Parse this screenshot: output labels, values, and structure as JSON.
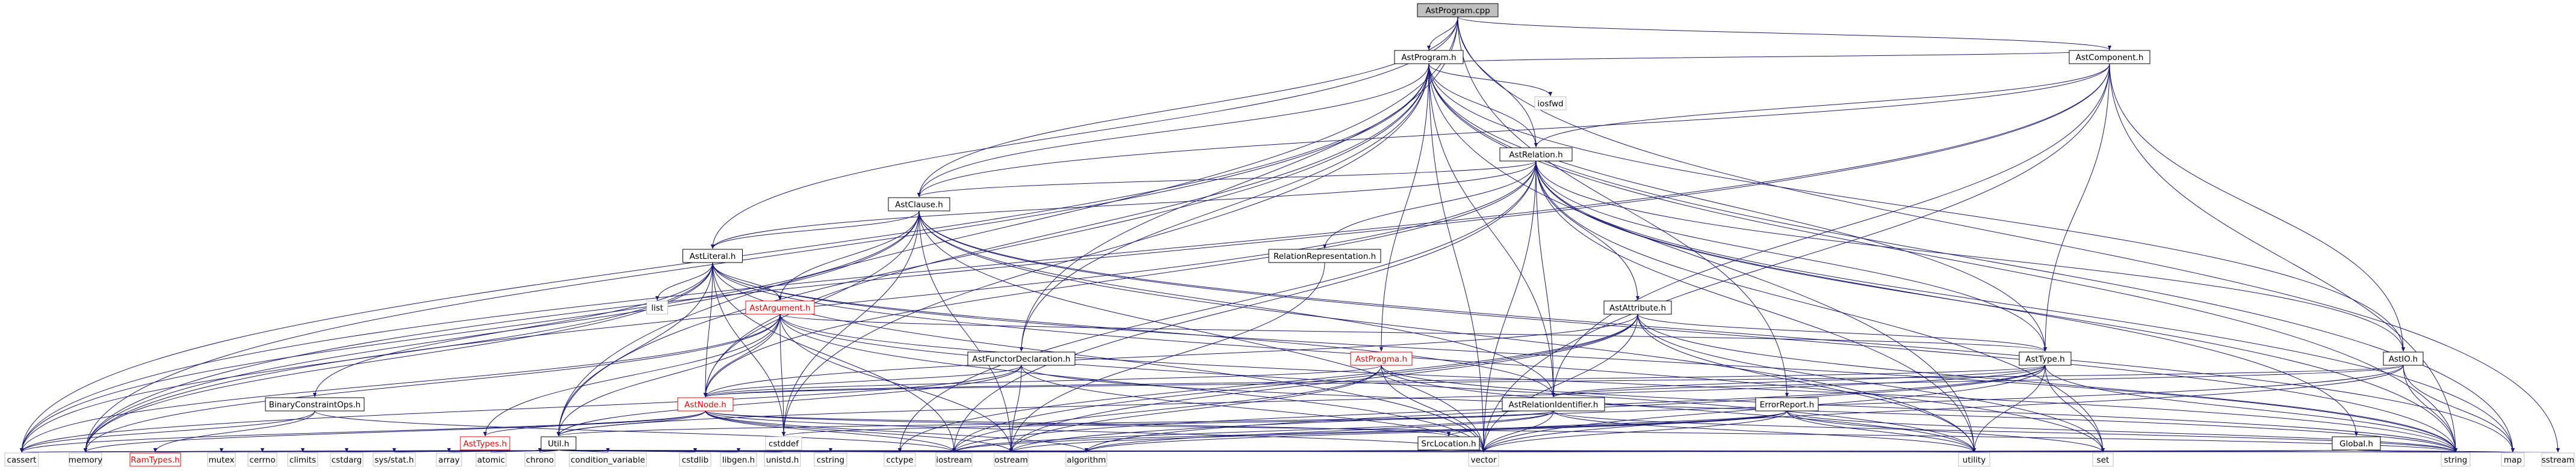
{
  "diagram": {
    "nodes": [
      {
        "id": "AstProgram_cpp",
        "label": "AstProgram.cpp",
        "style": "root"
      },
      {
        "id": "AstProgram_h",
        "label": "AstProgram.h",
        "style": "normal"
      },
      {
        "id": "iosfwd",
        "label": "iosfwd",
        "style": "sys"
      },
      {
        "id": "AstComponent_h",
        "label": "AstComponent.h",
        "style": "normal"
      },
      {
        "id": "AstRelation_h",
        "label": "AstRelation.h",
        "style": "normal"
      },
      {
        "id": "AstClause_h",
        "label": "AstClause.h",
        "style": "normal"
      },
      {
        "id": "AstLiteral_h",
        "label": "AstLiteral.h",
        "style": "normal"
      },
      {
        "id": "RelationRepresentation_h",
        "label": "RelationRepresentation.h",
        "style": "normal"
      },
      {
        "id": "list",
        "label": "list",
        "style": "sys"
      },
      {
        "id": "AstArgument_h",
        "label": "AstArgument.h",
        "style": "red"
      },
      {
        "id": "AstAttribute_h",
        "label": "AstAttribute.h",
        "style": "normal"
      },
      {
        "id": "AstFunctorDeclaration_h",
        "label": "AstFunctorDeclaration.h",
        "style": "normal"
      },
      {
        "id": "AstPragma_h",
        "label": "AstPragma.h",
        "style": "red"
      },
      {
        "id": "AstType_h",
        "label": "AstType.h",
        "style": "normal"
      },
      {
        "id": "AstIO_h",
        "label": "AstIO.h",
        "style": "normal"
      },
      {
        "id": "AstNode_h",
        "label": "AstNode.h",
        "style": "red"
      },
      {
        "id": "AstRelationIdentifier_h",
        "label": "AstRelationIdentifier.h",
        "style": "normal"
      },
      {
        "id": "ErrorReport_h",
        "label": "ErrorReport.h",
        "style": "normal"
      },
      {
        "id": "BinaryConstraintOps_h",
        "label": "BinaryConstraintOps.h",
        "style": "normal"
      },
      {
        "id": "AstTypes_h",
        "label": "AstTypes.h",
        "style": "red"
      },
      {
        "id": "Util_h",
        "label": "Util.h",
        "style": "normal"
      },
      {
        "id": "SrcLocation_h",
        "label": "SrcLocation.h",
        "style": "normal"
      },
      {
        "id": "Global_h",
        "label": "Global.h",
        "style": "normal"
      },
      {
        "id": "cstddef",
        "label": "cstddef",
        "style": "sys"
      },
      {
        "id": "cassert",
        "label": "cassert",
        "style": "sys"
      },
      {
        "id": "memory",
        "label": "memory",
        "style": "sys"
      },
      {
        "id": "RamTypes_h",
        "label": "RamTypes.h",
        "style": "red"
      },
      {
        "id": "mutex",
        "label": "mutex",
        "style": "sys"
      },
      {
        "id": "cerrno",
        "label": "cerrno",
        "style": "sys"
      },
      {
        "id": "climits",
        "label": "climits",
        "style": "sys"
      },
      {
        "id": "cstdarg",
        "label": "cstdarg",
        "style": "sys"
      },
      {
        "id": "sys_stat_h",
        "label": "sys/stat.h",
        "style": "sys"
      },
      {
        "id": "array",
        "label": "array",
        "style": "sys"
      },
      {
        "id": "atomic",
        "label": "atomic",
        "style": "sys"
      },
      {
        "id": "chrono",
        "label": "chrono",
        "style": "sys"
      },
      {
        "id": "condition_variable",
        "label": "condition_variable",
        "style": "sys"
      },
      {
        "id": "cstdlib",
        "label": "cstdlib",
        "style": "sys"
      },
      {
        "id": "libgen_h",
        "label": "libgen.h",
        "style": "sys"
      },
      {
        "id": "unistd_h",
        "label": "unistd.h",
        "style": "sys"
      },
      {
        "id": "cstring",
        "label": "cstring",
        "style": "sys"
      },
      {
        "id": "cctype",
        "label": "cctype",
        "style": "sys"
      },
      {
        "id": "iostream",
        "label": "iostream",
        "style": "sys"
      },
      {
        "id": "ostream",
        "label": "ostream",
        "style": "sys"
      },
      {
        "id": "algorithm",
        "label": "algorithm",
        "style": "sys"
      },
      {
        "id": "vector",
        "label": "vector",
        "style": "sys"
      },
      {
        "id": "utility",
        "label": "utility",
        "style": "sys"
      },
      {
        "id": "set",
        "label": "set",
        "style": "sys"
      },
      {
        "id": "string",
        "label": "string",
        "style": "sys"
      },
      {
        "id": "map",
        "label": "map",
        "style": "sys"
      },
      {
        "id": "sstream",
        "label": "sstream",
        "style": "sys"
      }
    ],
    "edges": [
      [
        "AstProgram_cpp",
        "AstProgram_h"
      ],
      [
        "AstProgram_cpp",
        "AstComponent_h"
      ],
      [
        "AstProgram_cpp",
        "AstRelation_h"
      ],
      [
        "AstProgram_cpp",
        "AstClause_h"
      ],
      [
        "AstProgram_cpp",
        "AstLiteral_h"
      ],
      [
        "AstProgram_cpp",
        "AstFunctorDeclaration_h"
      ],
      [
        "AstProgram_cpp",
        "ErrorReport_h"
      ],
      [
        "AstProgram_cpp",
        "Util_h"
      ],
      [
        "AstProgram_cpp",
        "sstream"
      ],
      [
        "AstProgram_h",
        "iosfwd"
      ],
      [
        "AstProgram_h",
        "AstComponent_h"
      ],
      [
        "AstProgram_h",
        "AstRelation_h"
      ],
      [
        "AstProgram_h",
        "AstClause_h"
      ],
      [
        "AstProgram_h",
        "AstFunctorDeclaration_h"
      ],
      [
        "AstProgram_h",
        "AstPragma_h"
      ],
      [
        "AstProgram_h",
        "AstType_h"
      ],
      [
        "AstProgram_h",
        "AstIO_h"
      ],
      [
        "AstProgram_h",
        "AstNode_h"
      ],
      [
        "AstProgram_h",
        "AstRelationIdentifier_h"
      ],
      [
        "AstProgram_h",
        "Util_h"
      ],
      [
        "AstProgram_h",
        "cassert"
      ],
      [
        "AstProgram_h",
        "memory"
      ],
      [
        "AstProgram_h",
        "cstddef"
      ],
      [
        "AstProgram_h",
        "vector"
      ],
      [
        "AstProgram_h",
        "string"
      ],
      [
        "AstProgram_h",
        "map"
      ],
      [
        "AstProgram_h",
        "utility"
      ],
      [
        "AstComponent_h",
        "AstRelation_h"
      ],
      [
        "AstComponent_h",
        "AstClause_h"
      ],
      [
        "AstComponent_h",
        "AstIO_h"
      ],
      [
        "AstComponent_h",
        "AstType_h"
      ],
      [
        "AstComponent_h",
        "AstRelationIdentifier_h"
      ],
      [
        "AstComponent_h",
        "memory"
      ],
      [
        "AstComponent_h",
        "string"
      ],
      [
        "AstComponent_h",
        "vector"
      ],
      [
        "AstComponent_h",
        "cassert"
      ],
      [
        "AstRelation_h",
        "AstClause_h"
      ],
      [
        "AstRelation_h",
        "AstAttribute_h"
      ],
      [
        "AstRelation_h",
        "AstIO_h"
      ],
      [
        "AstRelation_h",
        "AstNode_h"
      ],
      [
        "AstRelation_h",
        "AstType_h"
      ],
      [
        "AstRelation_h",
        "AstRelationIdentifier_h"
      ],
      [
        "AstRelation_h",
        "RelationRepresentation_h"
      ],
      [
        "AstRelation_h",
        "Global_h"
      ],
      [
        "AstRelation_h",
        "memory"
      ],
      [
        "AstRelation_h",
        "set"
      ],
      [
        "AstRelation_h",
        "string"
      ],
      [
        "AstRelation_h",
        "vector"
      ],
      [
        "AstRelation_h",
        "utility"
      ],
      [
        "AstRelation_h",
        "cctype"
      ],
      [
        "AstRelation_h",
        "iostream"
      ],
      [
        "AstRelation_h",
        "map"
      ],
      [
        "AstRelation_h",
        "AstLiteral_h"
      ],
      [
        "AstClause_h",
        "AstLiteral_h"
      ],
      [
        "AstClause_h",
        "AstArgument_h"
      ],
      [
        "AstClause_h",
        "AstNode_h"
      ],
      [
        "AstClause_h",
        "AstRelationIdentifier_h"
      ],
      [
        "AstClause_h",
        "cstddef"
      ],
      [
        "AstClause_h",
        "memory"
      ],
      [
        "AstClause_h",
        "string"
      ],
      [
        "AstClause_h",
        "vector"
      ],
      [
        "AstClause_h",
        "map"
      ],
      [
        "AstClause_h",
        "cassert"
      ],
      [
        "AstClause_h",
        "ostream"
      ],
      [
        "AstClause_h",
        "utility"
      ],
      [
        "AstLiteral_h",
        "list"
      ],
      [
        "AstLiteral_h",
        "AstArgument_h"
      ],
      [
        "AstLiteral_h",
        "AstNode_h"
      ],
      [
        "AstLiteral_h",
        "AstRelationIdentifier_h"
      ],
      [
        "AstLiteral_h",
        "BinaryConstraintOps_h"
      ],
      [
        "AstLiteral_h",
        "Util_h"
      ],
      [
        "AstLiteral_h",
        "cstddef"
      ],
      [
        "AstLiteral_h",
        "memory"
      ],
      [
        "AstLiteral_h",
        "string"
      ],
      [
        "AstLiteral_h",
        "vector"
      ],
      [
        "AstLiteral_h",
        "iostream"
      ],
      [
        "AstLiteral_h",
        "cassert"
      ],
      [
        "AstLiteral_h",
        "set"
      ],
      [
        "RelationRepresentation_h",
        "ostream"
      ],
      [
        "AstArgument_h",
        "AstNode_h"
      ],
      [
        "AstArgument_h",
        "AstType_h"
      ],
      [
        "AstArgument_h",
        "AstTypes_h"
      ],
      [
        "AstArgument_h",
        "Util_h"
      ],
      [
        "AstArgument_h",
        "cstddef"
      ],
      [
        "AstArgument_h",
        "memory"
      ],
      [
        "AstArgument_h",
        "string"
      ],
      [
        "AstArgument_h",
        "vector"
      ],
      [
        "AstArgument_h",
        "cassert"
      ],
      [
        "AstArgument_h",
        "utility"
      ],
      [
        "AstArgument_h",
        "ostream"
      ],
      [
        "AstAttribute_h",
        "AstNode_h"
      ],
      [
        "AstAttribute_h",
        "AstType_h"
      ],
      [
        "AstAttribute_h",
        "ostream"
      ],
      [
        "AstAttribute_h",
        "string"
      ],
      [
        "AstAttribute_h",
        "vector"
      ],
      [
        "AstAttribute_h",
        "set"
      ],
      [
        "AstAttribute_h",
        "utility"
      ],
      [
        "AstAttribute_h",
        "iostream"
      ],
      [
        "AstAttribute_h",
        "cctype"
      ],
      [
        "AstFunctorDeclaration_h",
        "AstNode_h"
      ],
      [
        "AstFunctorDeclaration_h",
        "Util_h"
      ],
      [
        "AstFunctorDeclaration_h",
        "string"
      ],
      [
        "AstFunctorDeclaration_h",
        "vector"
      ],
      [
        "AstFunctorDeclaration_h",
        "ostream"
      ],
      [
        "AstFunctorDeclaration_h",
        "cassert"
      ],
      [
        "AstPragma_h",
        "AstNode_h"
      ],
      [
        "AstPragma_h",
        "string"
      ],
      [
        "AstPragma_h",
        "utility"
      ],
      [
        "AstPragma_h",
        "vector"
      ],
      [
        "AstPragma_h",
        "ostream"
      ],
      [
        "AstPragma_h",
        "iostream"
      ],
      [
        "AstType_h",
        "AstNode_h"
      ],
      [
        "AstType_h",
        "AstRelationIdentifier_h"
      ],
      [
        "AstType_h",
        "Util_h"
      ],
      [
        "AstType_h",
        "set"
      ],
      [
        "AstType_h",
        "string"
      ],
      [
        "AstType_h",
        "vector"
      ],
      [
        "AstType_h",
        "utility"
      ],
      [
        "AstType_h",
        "iostream"
      ],
      [
        "AstType_h",
        "algorithm"
      ],
      [
        "AstIO_h",
        "AstNode_h"
      ],
      [
        "AstIO_h",
        "AstRelationIdentifier_h"
      ],
      [
        "AstIO_h",
        "string"
      ],
      [
        "AstIO_h",
        "map"
      ],
      [
        "AstIO_h",
        "vector"
      ],
      [
        "AstIO_h",
        "ostream"
      ],
      [
        "AstNode_h",
        "AstTypes_h"
      ],
      [
        "AstNode_h",
        "SrcLocation_h"
      ],
      [
        "AstNode_h",
        "Util_h"
      ],
      [
        "AstNode_h",
        "memory"
      ],
      [
        "AstNode_h",
        "cassert"
      ],
      [
        "AstNode_h",
        "vector"
      ],
      [
        "AstNode_h",
        "ostream"
      ],
      [
        "AstNode_h",
        "iostream"
      ],
      [
        "AstNode_h",
        "algorithm"
      ],
      [
        "AstNode_h",
        "string"
      ],
      [
        "AstRelationIdentifier_h",
        "Util_h"
      ],
      [
        "AstRelationIdentifier_h",
        "string"
      ],
      [
        "AstRelationIdentifier_h",
        "vector"
      ],
      [
        "AstRelationIdentifier_h",
        "iostream"
      ],
      [
        "AstRelationIdentifier_h",
        "algorithm"
      ],
      [
        "AstRelationIdentifier_h",
        "utility"
      ],
      [
        "AstRelationIdentifier_h",
        "cstddef"
      ],
      [
        "ErrorReport_h",
        "SrcLocation_h"
      ],
      [
        "ErrorReport_h",
        "algorithm"
      ],
      [
        "ErrorReport_h",
        "iostream"
      ],
      [
        "ErrorReport_h",
        "set"
      ],
      [
        "ErrorReport_h",
        "string"
      ],
      [
        "ErrorReport_h",
        "vector"
      ],
      [
        "ErrorReport_h",
        "utility"
      ],
      [
        "ErrorReport_h",
        "ostream"
      ],
      [
        "BinaryConstraintOps_h",
        "RamTypes_h"
      ],
      [
        "BinaryConstraintOps_h",
        "cassert"
      ],
      [
        "BinaryConstraintOps_h",
        "iostream"
      ],
      [
        "AstTypes_h",
        "RamTypes_h"
      ],
      [
        "AstTypes_h",
        "cassert"
      ],
      [
        "Util_h",
        "RamTypes_h"
      ],
      [
        "Util_h",
        "mutex"
      ],
      [
        "Util_h",
        "cerrno"
      ],
      [
        "Util_h",
        "climits"
      ],
      [
        "Util_h",
        "cstdarg"
      ],
      [
        "Util_h",
        "sys_stat_h"
      ],
      [
        "Util_h",
        "array"
      ],
      [
        "Util_h",
        "atomic"
      ],
      [
        "Util_h",
        "chrono"
      ],
      [
        "Util_h",
        "condition_variable"
      ],
      [
        "Util_h",
        "cstdlib"
      ],
      [
        "Util_h",
        "libgen_h"
      ],
      [
        "Util_h",
        "unistd_h"
      ],
      [
        "Util_h",
        "cstring"
      ],
      [
        "Util_h",
        "cctype"
      ],
      [
        "Util_h",
        "iostream"
      ],
      [
        "Util_h",
        "ostream"
      ],
      [
        "Util_h",
        "algorithm"
      ],
      [
        "Util_h",
        "vector"
      ],
      [
        "Util_h",
        "utility"
      ],
      [
        "Util_h",
        "set"
      ],
      [
        "Util_h",
        "string"
      ],
      [
        "Util_h",
        "map"
      ],
      [
        "Util_h",
        "sstream"
      ],
      [
        "Util_h",
        "memory"
      ],
      [
        "Util_h",
        "cassert"
      ],
      [
        "SrcLocation_h",
        "string"
      ],
      [
        "SrcLocation_h",
        "iostream"
      ],
      [
        "SrcLocation_h",
        "ostream"
      ],
      [
        "SrcLocation_h",
        "utility"
      ],
      [
        "Global_h",
        "map"
      ],
      [
        "Global_h",
        "string"
      ],
      [
        "Global_h",
        "vector"
      ],
      [
        "Global_h",
        "utility"
      ]
    ]
  }
}
